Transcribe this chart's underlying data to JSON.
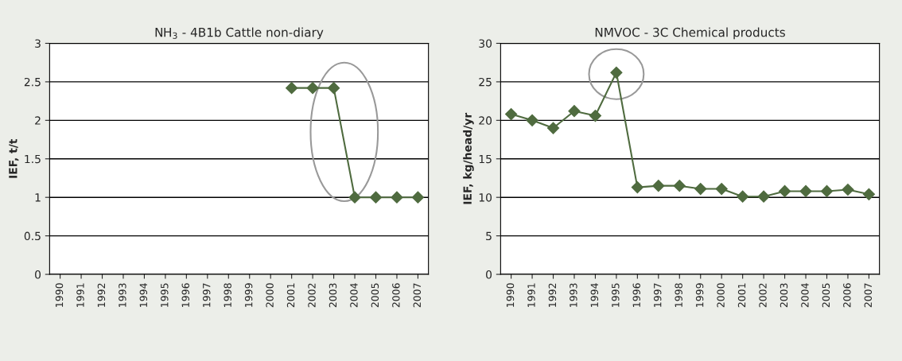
{
  "chart_data": [
    {
      "type": "line",
      "title": "NH$_{3}$ - 4B1b Cattle non-diary",
      "ylabel": "IEF, t/t",
      "categories": [
        "1990",
        "1991",
        "1992",
        "1993",
        "1994",
        "1995",
        "1996",
        "1997",
        "1998",
        "1999",
        "2000",
        "2001",
        "2002",
        "2003",
        "2004",
        "2005",
        "2006",
        "2007"
      ],
      "series": [
        {
          "color": "#4f6b3f",
          "values": [
            null,
            null,
            null,
            null,
            null,
            null,
            null,
            null,
            null,
            null,
            null,
            2.42,
            2.42,
            2.42,
            1.0,
            1.0,
            1.0,
            1.0
          ]
        }
      ],
      "ylim": [
        0,
        3
      ],
      "yticks": [
        0,
        0.5,
        1,
        1.5,
        2,
        2.5,
        3
      ],
      "grid": "y",
      "legend": false,
      "marker": "diamond",
      "line_style": "solid"
    },
    {
      "type": "line",
      "title": "NMVOC - 3C Chemical products",
      "ylabel": "IEF, kg/head/yr",
      "categories": [
        "1990",
        "1991",
        "1992",
        "1993",
        "1994",
        "1995",
        "1996",
        "1997",
        "1998",
        "1999",
        "2000",
        "2001",
        "2002",
        "2003",
        "2004",
        "2005",
        "2006",
        "2007"
      ],
      "series": [
        {
          "color": "#4f6b3f",
          "values": [
            20.8,
            20.0,
            19.0,
            21.2,
            20.6,
            26.2,
            11.3,
            11.5,
            11.5,
            11.1,
            11.1,
            10.1,
            10.1,
            10.8,
            10.8,
            10.8,
            11.0,
            10.4
          ]
        }
      ],
      "ylim": [
        0,
        30
      ],
      "yticks": [
        0,
        5,
        10,
        15,
        20,
        25,
        30
      ],
      "grid": "y",
      "legend": false,
      "marker": "diamond",
      "line_style": "solid"
    }
  ]
}
